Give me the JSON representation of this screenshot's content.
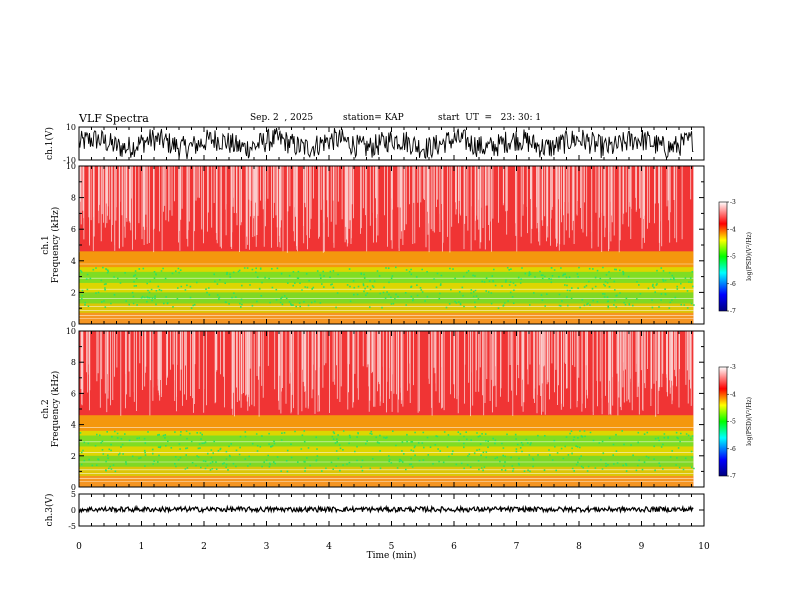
{
  "header": {
    "title": "VLF Spectra",
    "date": "Sep. 2  , 2025",
    "station": "station= KAP",
    "start": "start  UT  =   23: 30: 1"
  },
  "chart_data": {
    "type": "heatmap",
    "panels": [
      {
        "id": "ch1",
        "kind": "waveform",
        "ylabel": "ch.1(V)",
        "ylim": [
          -10,
          10
        ],
        "yticks": [
          "10",
          "-10"
        ]
      },
      {
        "id": "spec1",
        "kind": "spectrogram",
        "ylabel_top": "ch.1",
        "ylabel": "Frequency  (kHz)",
        "ylim": [
          0,
          10
        ],
        "yticks": [
          "0",
          "2",
          "4",
          "6",
          "8",
          "10"
        ]
      },
      {
        "id": "spec2",
        "kind": "spectrogram",
        "ylabel_top": "ch.2",
        "ylabel": "Frequency  (kHz)",
        "ylim": [
          0,
          10
        ],
        "yticks": [
          "0",
          "2",
          "4",
          "6",
          "8",
          "10"
        ]
      },
      {
        "id": "ch3",
        "kind": "waveform",
        "ylabel": "ch.3(V)",
        "ylim": [
          -5,
          5
        ],
        "yticks": [
          "5",
          "0",
          "-5"
        ]
      }
    ],
    "xaxis": {
      "label": "Time  (min)",
      "xlim": [
        0,
        10
      ],
      "data_end": 9.83,
      "ticks": [
        "0",
        "1",
        "2",
        "3",
        "4",
        "5",
        "6",
        "7",
        "8",
        "9",
        "10"
      ]
    },
    "colorbar": {
      "label": "log(PSD)(V²/Hz)",
      "range": [
        -7,
        -3
      ],
      "ticks": [
        "-3",
        "-4",
        "-5",
        "-6",
        "-7"
      ]
    },
    "colors": {
      "bg": "#ffffff",
      "axis": "#000000"
    }
  }
}
